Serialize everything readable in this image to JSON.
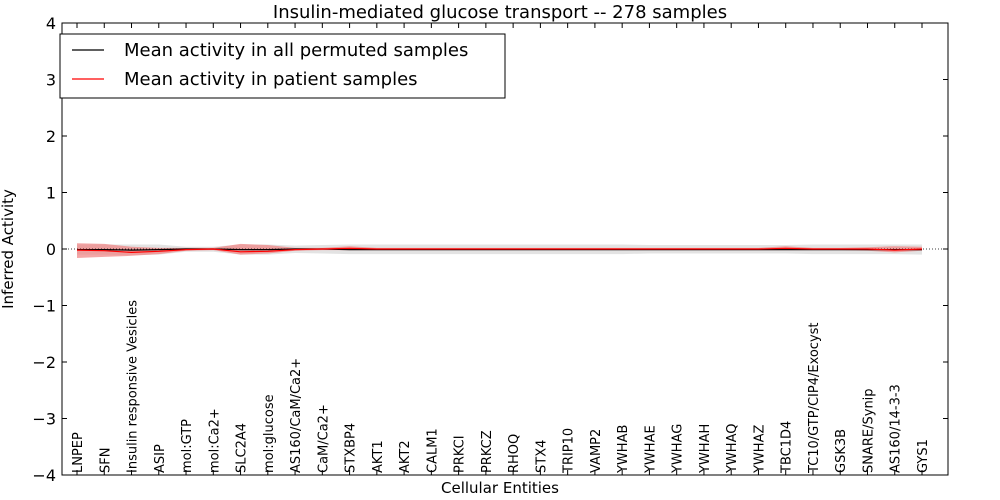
{
  "chart_data": {
    "type": "line",
    "title": "Insulin-mediated glucose transport -- 278 samples",
    "xlabel": "Cellular Entities",
    "ylabel": "Inferred Activity",
    "ylim": [
      -4,
      4
    ],
    "yticks": [
      "4",
      "3",
      "2",
      "1",
      "0",
      "−1",
      "−2",
      "−3",
      "−4"
    ],
    "ytick_values": [
      4,
      3,
      2,
      1,
      0,
      -1,
      -2,
      -3,
      -4
    ],
    "legend_position": "top-left",
    "categories": [
      "LNPEP",
      "SFN",
      "Insulin responsive Vesicles",
      "ASIP",
      "mol:GTP",
      "mol:Ca2+",
      "SLC2A4",
      "mol:glucose",
      "AS160/CaM/Ca2+",
      "CaM/Ca2+",
      "STXBP4",
      "AKT1",
      "AKT2",
      "CALM1",
      "PRKCI",
      "PRKCZ",
      "RHOQ",
      "STX4",
      "TRIP10",
      "VAMP2",
      "YWHAB",
      "YWHAE",
      "YWHAG",
      "YWHAH",
      "YWHAQ",
      "YWHAZ",
      "TBC1D4",
      "TC10/GTP/CIP4/Exocyst",
      "GSK3B",
      "SNARE/Synip",
      "AS160/14-3-3",
      "GYS1"
    ],
    "series": [
      {
        "name": "Mean activity in all permuted samples",
        "color": "#000000",
        "band_color": "#d9d9d9",
        "values": [
          -0.01,
          -0.01,
          -0.02,
          -0.01,
          0.0,
          0.0,
          -0.01,
          -0.01,
          0.0,
          0.0,
          -0.01,
          -0.01,
          -0.01,
          -0.01,
          -0.01,
          -0.01,
          -0.01,
          -0.01,
          -0.01,
          -0.01,
          -0.01,
          -0.01,
          -0.01,
          -0.01,
          -0.01,
          -0.01,
          -0.01,
          -0.01,
          -0.01,
          -0.01,
          -0.01,
          -0.01
        ],
        "band_lower": [
          -0.1,
          -0.1,
          -0.11,
          -0.1,
          -0.05,
          -0.05,
          -0.1,
          -0.1,
          -0.07,
          -0.08,
          -0.09,
          -0.09,
          -0.09,
          -0.09,
          -0.09,
          -0.09,
          -0.09,
          -0.09,
          -0.09,
          -0.09,
          -0.09,
          -0.08,
          -0.08,
          -0.08,
          -0.08,
          -0.08,
          -0.08,
          -0.09,
          -0.09,
          -0.09,
          -0.09,
          -0.1
        ],
        "band_upper": [
          0.08,
          0.08,
          0.08,
          0.08,
          0.04,
          0.04,
          0.08,
          0.08,
          0.06,
          0.07,
          0.08,
          0.08,
          0.08,
          0.08,
          0.08,
          0.08,
          0.08,
          0.08,
          0.08,
          0.08,
          0.08,
          0.07,
          0.07,
          0.07,
          0.07,
          0.07,
          0.07,
          0.08,
          0.08,
          0.08,
          0.08,
          0.08
        ]
      },
      {
        "name": "Mean activity in patient samples",
        "color": "#ff0000",
        "band_color": "#f08080",
        "values": [
          -0.02,
          -0.03,
          -0.06,
          -0.04,
          -0.01,
          0.0,
          -0.05,
          -0.04,
          -0.01,
          0.0,
          0.01,
          0.0,
          0.0,
          0.0,
          0.0,
          0.0,
          0.0,
          0.0,
          0.0,
          0.0,
          0.0,
          0.0,
          0.0,
          0.0,
          0.0,
          0.0,
          0.01,
          0.0,
          0.0,
          0.0,
          -0.02,
          0.0
        ],
        "band_lower": [
          -0.16,
          -0.14,
          -0.12,
          -0.09,
          -0.03,
          -0.02,
          -0.1,
          -0.08,
          -0.03,
          -0.02,
          -0.02,
          -0.02,
          -0.02,
          -0.02,
          -0.02,
          -0.02,
          -0.02,
          -0.02,
          -0.02,
          -0.02,
          -0.02,
          -0.02,
          -0.02,
          -0.02,
          -0.02,
          -0.02,
          -0.02,
          -0.02,
          -0.02,
          -0.03,
          -0.06,
          -0.03
        ],
        "band_upper": [
          0.1,
          0.09,
          0.04,
          0.02,
          0.02,
          0.02,
          0.09,
          0.07,
          0.02,
          0.02,
          0.05,
          0.02,
          0.02,
          0.02,
          0.02,
          0.02,
          0.02,
          0.02,
          0.02,
          0.02,
          0.02,
          0.02,
          0.02,
          0.02,
          0.02,
          0.02,
          0.05,
          0.02,
          0.02,
          0.03,
          0.05,
          0.04
        ]
      }
    ]
  }
}
